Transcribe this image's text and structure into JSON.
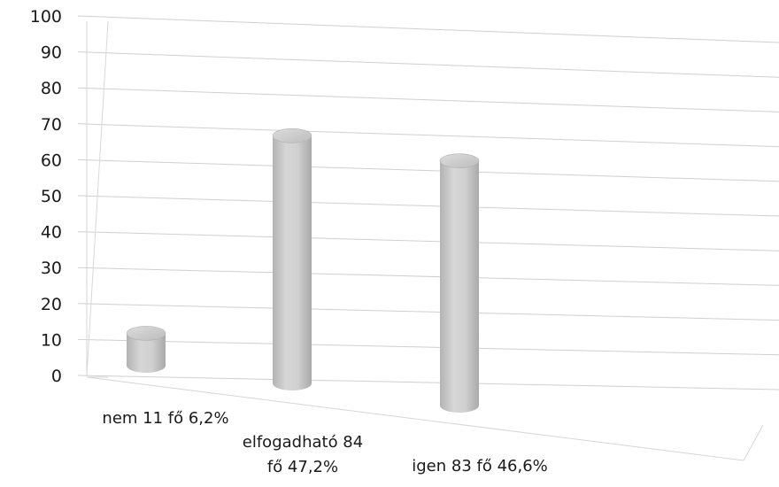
{
  "chart_data": {
    "type": "bar",
    "style": "3d-cylinder",
    "title": "",
    "xlabel": "",
    "ylabel": "",
    "ylim": [
      0,
      100
    ],
    "y_ticks": [
      0,
      10,
      20,
      30,
      40,
      50,
      60,
      70,
      80,
      90,
      100
    ],
    "grid": true,
    "legend": "none",
    "bar_color": "#c9c9c9",
    "gridline_color": "#cfcfcf",
    "categories": [
      [
        "nem 11 fő 6,2%"
      ],
      [
        "elfogadható 84",
        "fő 47,2%"
      ],
      [
        "igen 83 fő 46,6%"
      ]
    ],
    "values": [
      11,
      84,
      83
    ]
  }
}
